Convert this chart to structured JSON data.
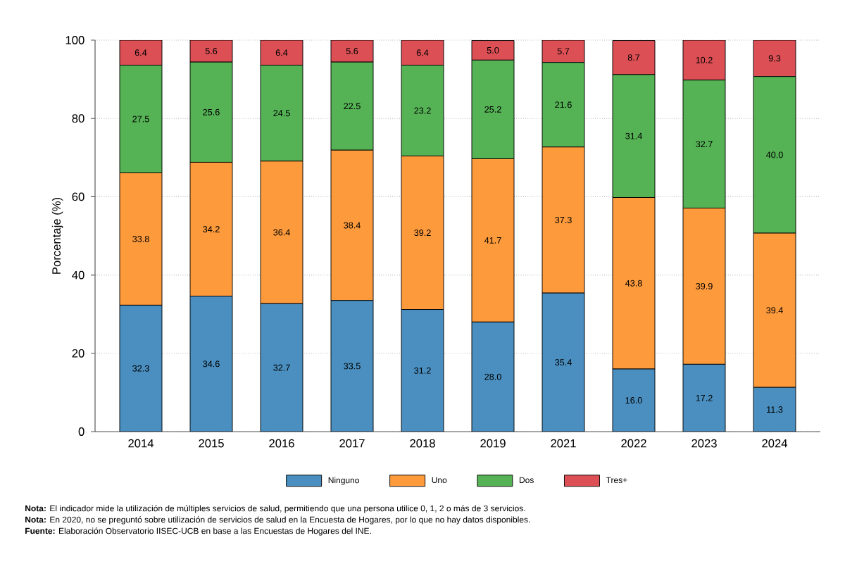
{
  "chart_data": {
    "type": "bar",
    "stacked": true,
    "ylabel": "Porcentaje (%)",
    "categories": [
      "2014",
      "2015",
      "2016",
      "2017",
      "2018",
      "2019",
      "2021",
      "2022",
      "2023",
      "2024"
    ],
    "series": [
      {
        "name": "Ninguno",
        "color": "#4a8fc0",
        "values": [
          32.3,
          34.6,
          32.7,
          33.5,
          31.2,
          28.0,
          35.4,
          16.0,
          17.2,
          11.3
        ],
        "value_labels": [
          "32.3",
          "34.6",
          "32.7",
          "33.5",
          "31.2",
          "28.0",
          "35.4",
          "16.0",
          "17.2",
          "11.3"
        ]
      },
      {
        "name": "Uno",
        "color": "#fd9a3c",
        "values": [
          33.8,
          34.2,
          36.4,
          38.4,
          39.2,
          41.7,
          37.3,
          43.8,
          39.9,
          39.4
        ],
        "value_labels": [
          "33.8",
          "34.2",
          "36.4",
          "38.4",
          "39.2",
          "41.7",
          "37.3",
          "43.8",
          "39.9",
          "39.4"
        ]
      },
      {
        "name": "Dos",
        "color": "#55b355",
        "values": [
          27.5,
          25.6,
          24.5,
          22.5,
          23.2,
          25.2,
          21.6,
          31.4,
          32.7,
          40.0
        ],
        "value_labels": [
          "27.5",
          "25.6",
          "24.5",
          "22.5",
          "23.2",
          "25.2",
          "21.6",
          "31.4",
          "32.7",
          "40.0"
        ]
      },
      {
        "name": "Tres+",
        "color": "#dc4f55",
        "values": [
          6.4,
          5.6,
          6.4,
          5.6,
          6.4,
          5.0,
          5.7,
          8.7,
          10.2,
          9.3
        ],
        "value_labels": [
          "6.4",
          "5.6",
          "6.4",
          "5.6",
          "6.4",
          "5.0",
          "5.7",
          "8.7",
          "10.2",
          "9.3"
        ]
      }
    ],
    "ylim": [
      0,
      100
    ],
    "yticks": [
      0,
      20,
      40,
      60,
      80,
      100
    ],
    "grid": "y",
    "legend": "bottom",
    "annotations": [
      "**Nota:** El indicador mide la utilización de múltiples servicios de salud, permitiendo que una persona utilice 0, 1, 2 o más de 3 servicios.",
      "**Nota:** En 2020, no se preguntó sobre utilización de servicios de salud en la Encuesta de Hogares, por lo que no hay datos disponibles.",
      "**Fuente:** Elaboración Observatorio IISEC-UCB en base a las Encuestas de Hogares del INE."
    ]
  }
}
